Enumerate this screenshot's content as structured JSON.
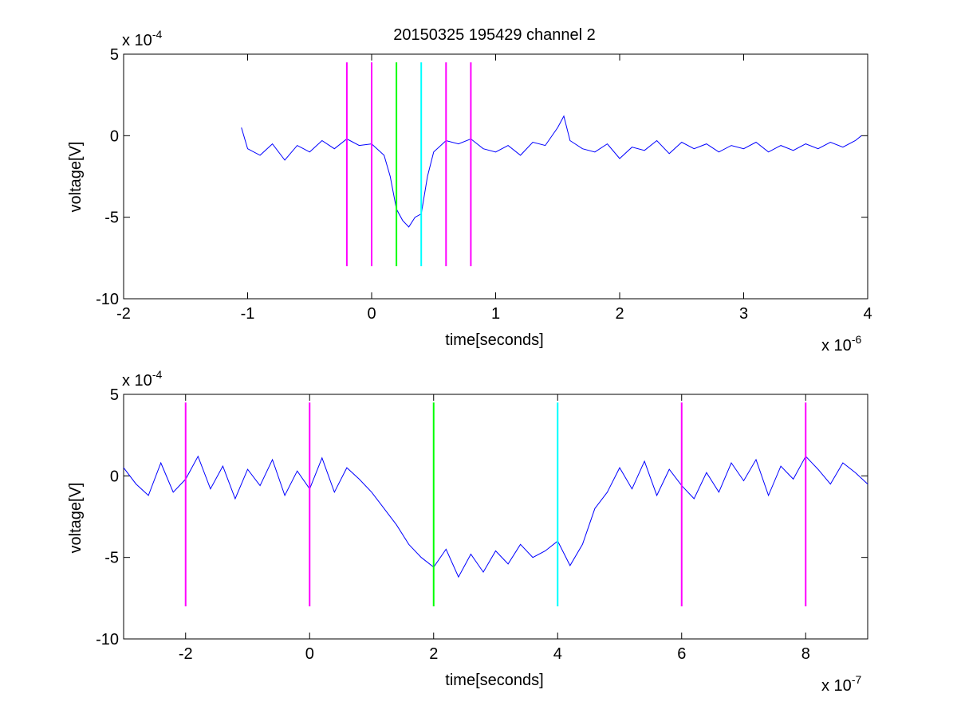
{
  "figure": {
    "title": "20150325 195429 channel 2"
  },
  "chart_data": [
    {
      "type": "line",
      "title": "20150325 195429 channel 2",
      "xlabel": "time[seconds]",
      "ylabel": "voltage[V]",
      "x_exponent_label": "x 10",
      "x_exponent": "-6",
      "y_exponent_label": "x 10",
      "y_exponent": "-4",
      "xlim": [
        -2,
        4
      ],
      "ylim": [
        -10,
        5
      ],
      "x_ticks": [
        -2,
        -1,
        0,
        1,
        2,
        3,
        4
      ],
      "x_tick_labels": [
        "-2",
        "-1",
        "0",
        "1",
        "2",
        "3",
        "4"
      ],
      "y_ticks": [
        -10,
        -5,
        0,
        5
      ],
      "y_tick_labels": [
        "-10",
        "-5",
        "0",
        "5"
      ],
      "grid": false,
      "series": [
        {
          "color": "#0000ff",
          "x": [
            -1.05,
            -1.0,
            -0.9,
            -0.8,
            -0.7,
            -0.6,
            -0.5,
            -0.4,
            -0.3,
            -0.2,
            -0.1,
            0.0,
            0.1,
            0.15,
            0.2,
            0.25,
            0.3,
            0.35,
            0.4,
            0.45,
            0.5,
            0.6,
            0.7,
            0.8,
            0.9,
            1.0,
            1.1,
            1.2,
            1.3,
            1.4,
            1.5,
            1.55,
            1.6,
            1.7,
            1.8,
            1.9,
            2.0,
            2.1,
            2.2,
            2.3,
            2.4,
            2.5,
            2.6,
            2.7,
            2.8,
            2.9,
            3.0,
            3.1,
            3.2,
            3.3,
            3.4,
            3.5,
            3.6,
            3.7,
            3.8,
            3.9,
            3.95
          ],
          "y": [
            0.5,
            -0.8,
            -1.2,
            -0.5,
            -1.5,
            -0.6,
            -1.0,
            -0.3,
            -0.8,
            -0.2,
            -0.6,
            -0.5,
            -1.2,
            -2.5,
            -4.5,
            -5.2,
            -5.6,
            -5.0,
            -4.8,
            -2.5,
            -1.0,
            -0.3,
            -0.5,
            -0.2,
            -0.8,
            -1.0,
            -0.6,
            -1.2,
            -0.4,
            -0.6,
            0.5,
            1.2,
            -0.3,
            -0.8,
            -1.0,
            -0.5,
            -1.4,
            -0.7,
            -0.9,
            -0.3,
            -1.1,
            -0.4,
            -0.8,
            -0.5,
            -1.0,
            -0.6,
            -0.8,
            -0.4,
            -1.0,
            -0.6,
            -0.9,
            -0.5,
            -0.8,
            -0.4,
            -0.7,
            -0.3,
            0.0
          ]
        }
      ],
      "vertical_markers": [
        {
          "x": -0.2,
          "color": "#ff00ff",
          "y_range": [
            -8,
            4.5
          ]
        },
        {
          "x": 0.0,
          "color": "#ff00ff",
          "y_range": [
            -8,
            4.5
          ]
        },
        {
          "x": 0.2,
          "color": "#00ff00",
          "y_range": [
            -8,
            4.5
          ]
        },
        {
          "x": 0.4,
          "color": "#00ffff",
          "y_range": [
            -8,
            4.5
          ]
        },
        {
          "x": 0.6,
          "color": "#ff00ff",
          "y_range": [
            -8,
            4.5
          ]
        },
        {
          "x": 0.8,
          "color": "#ff00ff",
          "y_range": [
            -8,
            4.5
          ]
        }
      ]
    },
    {
      "type": "line",
      "title": "",
      "xlabel": "time[seconds]",
      "ylabel": "voltage[V]",
      "x_exponent_label": "x 10",
      "x_exponent": "-7",
      "y_exponent_label": "x 10",
      "y_exponent": "-4",
      "xlim": [
        -3,
        9
      ],
      "ylim": [
        -10,
        5
      ],
      "x_ticks": [
        -2,
        0,
        2,
        4,
        6,
        8
      ],
      "x_tick_labels": [
        "-2",
        "0",
        "2",
        "4",
        "6",
        "8"
      ],
      "y_ticks": [
        -10,
        -5,
        0,
        5
      ],
      "y_tick_labels": [
        "-10",
        "-5",
        "0",
        "5"
      ],
      "grid": false,
      "series": [
        {
          "color": "#0000ff",
          "x": [
            -3.0,
            -2.8,
            -2.6,
            -2.4,
            -2.2,
            -2.0,
            -1.8,
            -1.6,
            -1.4,
            -1.2,
            -1.0,
            -0.8,
            -0.6,
            -0.4,
            -0.2,
            0.0,
            0.2,
            0.4,
            0.6,
            0.8,
            1.0,
            1.2,
            1.4,
            1.6,
            1.8,
            2.0,
            2.2,
            2.4,
            2.6,
            2.8,
            3.0,
            3.2,
            3.4,
            3.6,
            3.8,
            4.0,
            4.2,
            4.4,
            4.6,
            4.8,
            5.0,
            5.2,
            5.4,
            5.6,
            5.8,
            6.0,
            6.2,
            6.4,
            6.6,
            6.8,
            7.0,
            7.2,
            7.4,
            7.6,
            7.8,
            8.0,
            8.2,
            8.4,
            8.6,
            8.8,
            9.0
          ],
          "y": [
            0.5,
            -0.5,
            -1.2,
            0.8,
            -1.0,
            -0.2,
            1.2,
            -0.8,
            0.6,
            -1.4,
            0.4,
            -0.6,
            1.0,
            -1.2,
            0.3,
            -0.8,
            1.1,
            -1.0,
            0.5,
            -0.2,
            -1.0,
            -2.0,
            -3.0,
            -4.2,
            -5.0,
            -5.6,
            -4.5,
            -6.2,
            -4.8,
            -5.9,
            -4.6,
            -5.4,
            -4.2,
            -5.0,
            -4.6,
            -4.0,
            -5.5,
            -4.2,
            -2.0,
            -1.0,
            0.5,
            -0.8,
            0.9,
            -1.2,
            0.4,
            -0.6,
            -1.4,
            0.2,
            -1.0,
            0.8,
            -0.3,
            1.0,
            -1.2,
            0.6,
            -0.2,
            1.2,
            0.4,
            -0.5,
            0.8,
            0.2,
            -0.5
          ]
        }
      ],
      "vertical_markers": [
        {
          "x": -2,
          "color": "#ff00ff",
          "y_range": [
            -8,
            4.5
          ]
        },
        {
          "x": 0,
          "color": "#ff00ff",
          "y_range": [
            -8,
            4.5
          ]
        },
        {
          "x": 2,
          "color": "#00ff00",
          "y_range": [
            -8,
            4.5
          ]
        },
        {
          "x": 4,
          "color": "#00ffff",
          "y_range": [
            -8,
            4.5
          ]
        },
        {
          "x": 6,
          "color": "#ff00ff",
          "y_range": [
            -8,
            4.5
          ]
        },
        {
          "x": 8,
          "color": "#ff00ff",
          "y_range": [
            -8,
            4.5
          ]
        }
      ]
    }
  ]
}
